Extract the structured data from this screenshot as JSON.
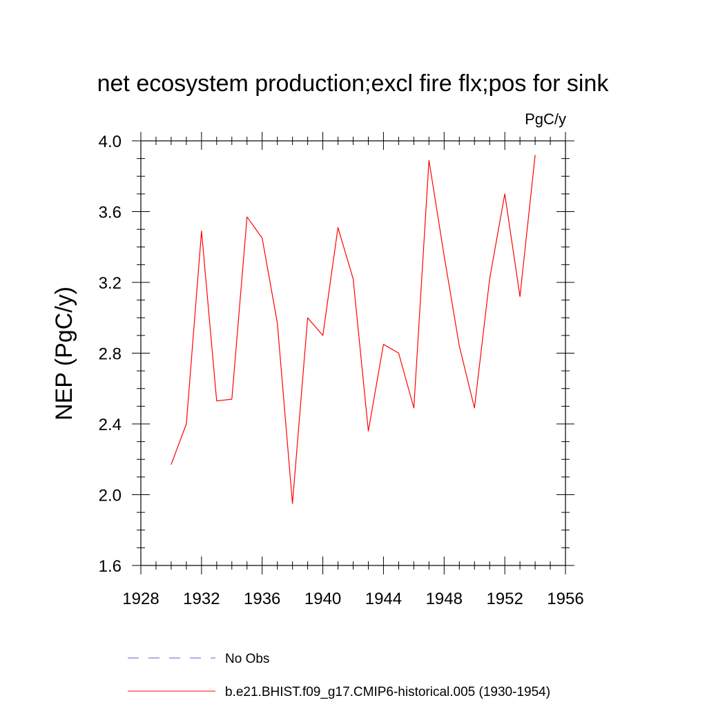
{
  "chart_data": {
    "type": "line",
    "title": "net ecosystem production;excl fire flx;pos for sink",
    "units": "PgC/y",
    "xlabel": "",
    "ylabel": "NEP  (PgC/y)",
    "xlim": [
      1928,
      1956
    ],
    "ylim": [
      1.6,
      4.0
    ],
    "xticks": [
      1928,
      1932,
      1936,
      1940,
      1944,
      1948,
      1952,
      1956
    ],
    "yticks": [
      "1.6",
      "2.0",
      "2.4",
      "2.8",
      "3.2",
      "3.6",
      "4.0"
    ],
    "grid": false,
    "legend_position": "bottom",
    "series": [
      {
        "name": "No Obs",
        "color": "#6a5acd",
        "dash": true,
        "x": [],
        "y": []
      },
      {
        "name": "b.e21.BHIST.f09_g17.CMIP6-historical.005 (1930-1954)",
        "color": "#ff0000",
        "dash": false,
        "x": [
          1930,
          1931,
          1932,
          1933,
          1934,
          1935,
          1936,
          1937,
          1938,
          1939,
          1940,
          1941,
          1942,
          1943,
          1944,
          1945,
          1946,
          1947,
          1948,
          1949,
          1950,
          1951,
          1952,
          1953,
          1954
        ],
        "y": [
          2.17,
          2.4,
          3.49,
          2.53,
          2.54,
          3.57,
          3.45,
          2.97,
          1.95,
          3.0,
          2.9,
          3.51,
          3.22,
          2.36,
          2.85,
          2.8,
          2.49,
          3.89,
          3.35,
          2.84,
          2.49,
          3.22,
          3.7,
          3.12,
          3.92
        ]
      }
    ]
  }
}
